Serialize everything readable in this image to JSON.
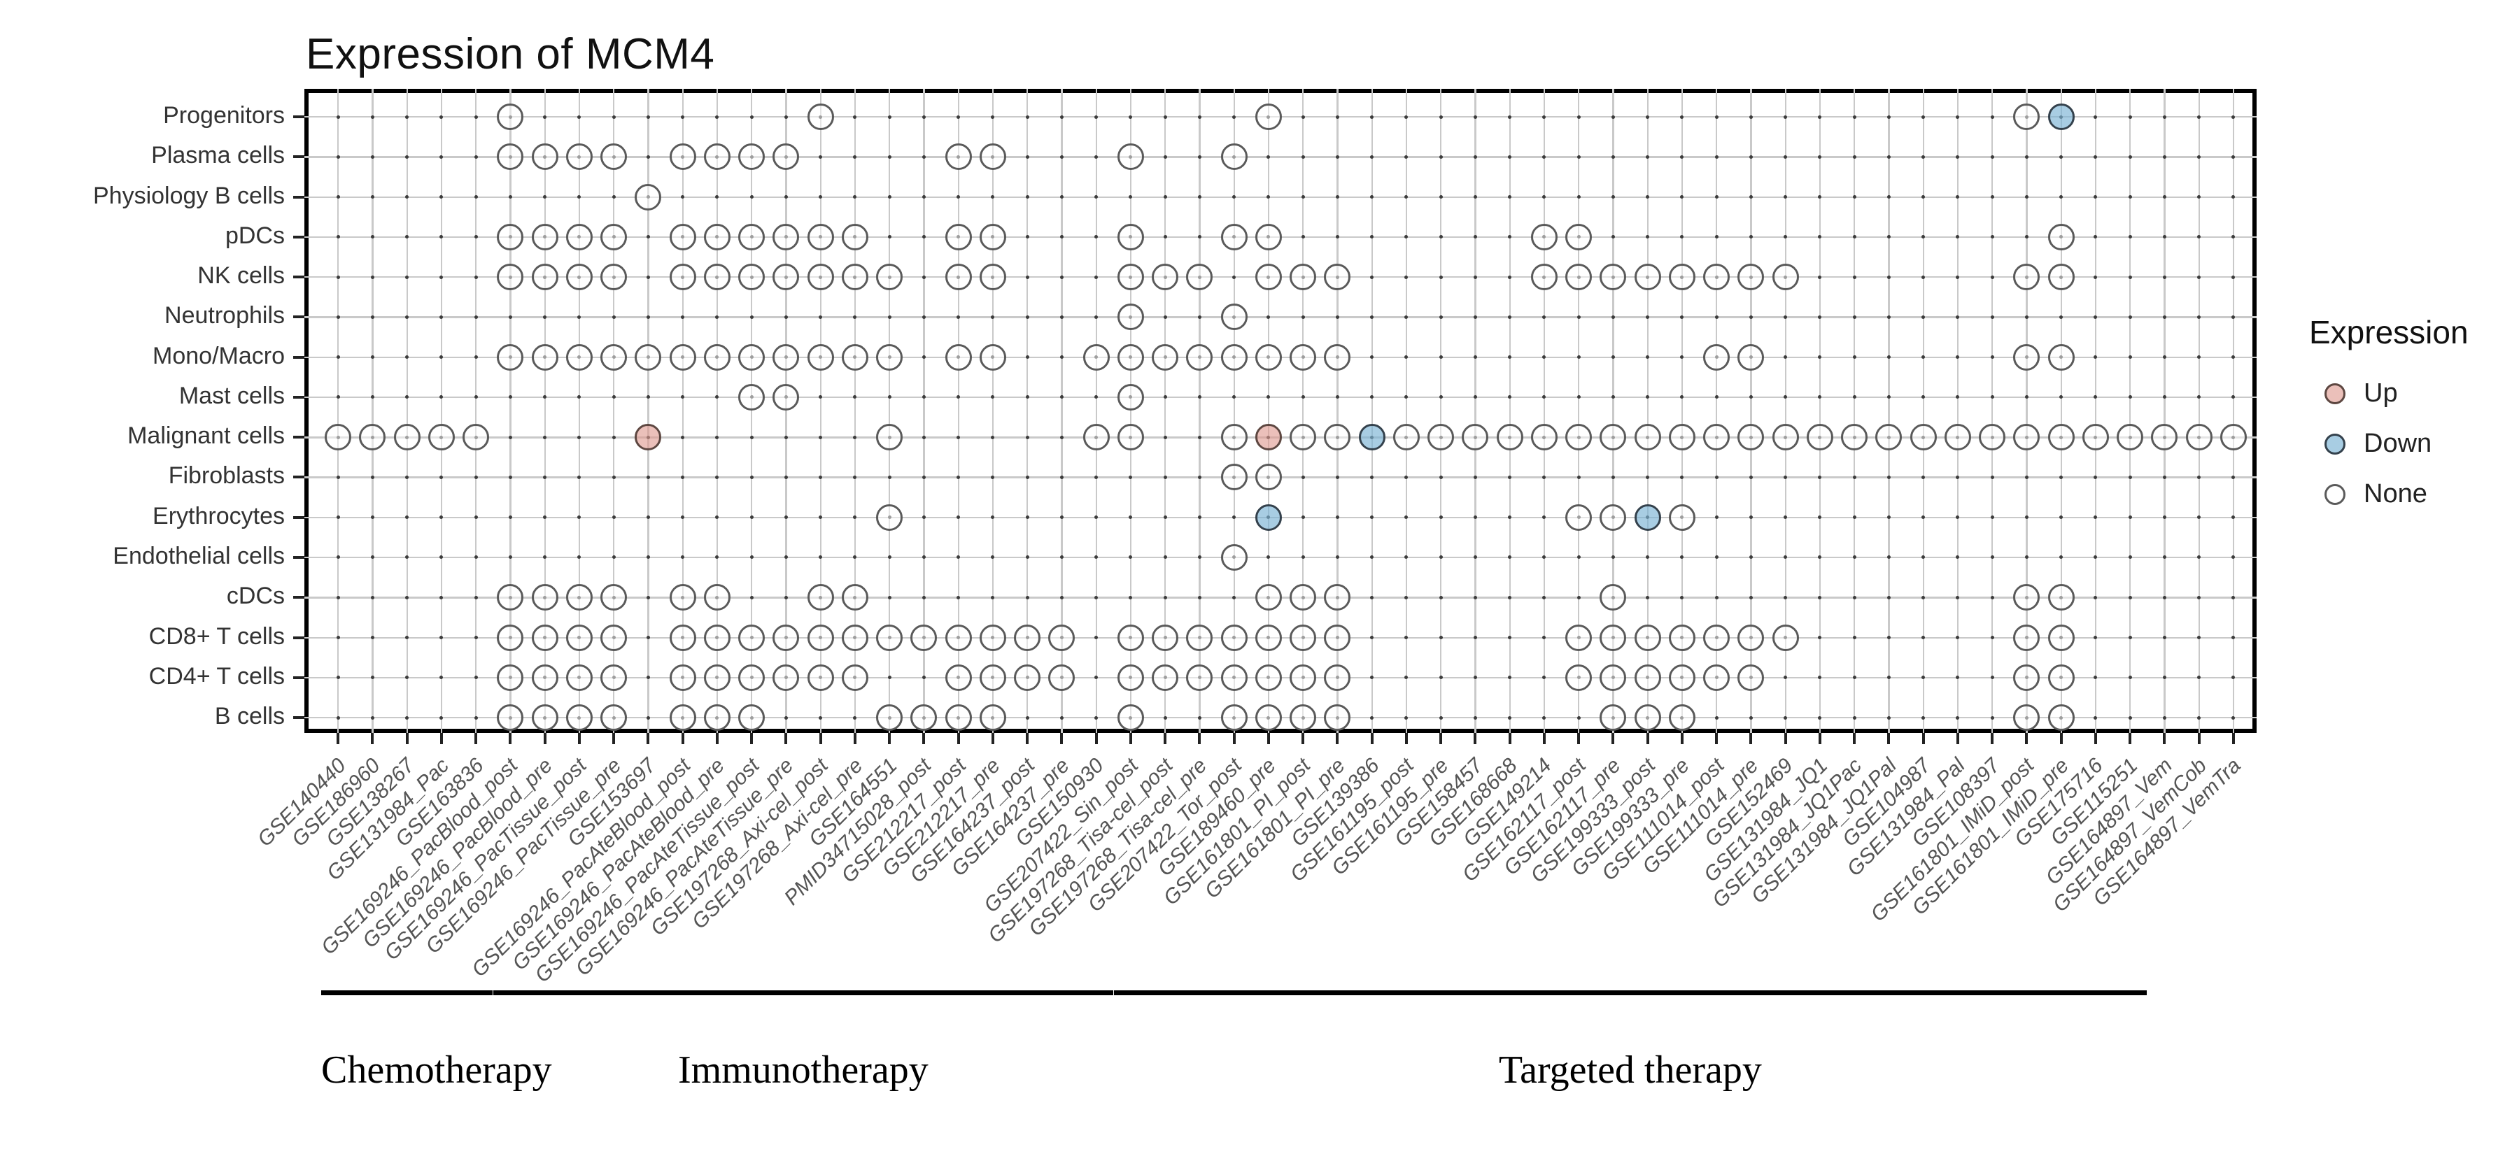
{
  "title": "Expression of MCM4",
  "legend": {
    "title": "Expression",
    "items": [
      {
        "label": "Up",
        "key": "up"
      },
      {
        "label": "Down",
        "key": "down"
      },
      {
        "label": "None",
        "key": "none"
      }
    ]
  },
  "colors": {
    "up_fill": "rgba(222,154,144,0.62)",
    "up_stroke": "#5d4741",
    "down_fill": "rgba(122,178,212,0.65)",
    "down_stroke": "#34414c",
    "none_fill": "rgba(255,255,255,0.5)",
    "none_stroke": "#5a5a5a",
    "grid": "#c9c9c9",
    "intersection_dot": "#3c3c3c",
    "panel_border": "#000000"
  },
  "chart_data": {
    "type": "scatter",
    "title": "Expression of MCM4",
    "xlabel": "",
    "ylabel": "",
    "grid": true,
    "legend_position": "right",
    "x_categories": [
      "GSE140440",
      "GSE186960",
      "GSE138267",
      "GSE131984_Pac",
      "GSE163836",
      "GSE169246_PacBlood_post",
      "GSE169246_PacBlood_pre",
      "GSE169246_PacTissue_post",
      "GSE169246_PacTissue_pre",
      "GSE153697",
      "GSE169246_PacAteBlood_post",
      "GSE169246_PacAteBlood_pre",
      "GSE169246_PacAteTissue_post",
      "GSE169246_PacAteTissue_pre",
      "GSE197268_Axi-cel_post",
      "GSE197268_Axi-cel_pre",
      "GSE164551",
      "PMID34715028_post",
      "GSE212217_post",
      "GSE212217_pre",
      "GSE164237_post",
      "GSE164237_pre",
      "GSE150930",
      "GSE207422_Sin_post",
      "GSE197268_Tisa-cel_post",
      "GSE197268_Tisa-cel_pre",
      "GSE207422_Tor_post",
      "GSE189460_pre",
      "GSE161801_PI_post",
      "GSE161801_PI_pre",
      "GSE139386",
      "GSE161195_post",
      "GSE161195_pre",
      "GSE158457",
      "GSE168668",
      "GSE149214",
      "GSE162117_post",
      "GSE162117_pre",
      "GSE199333_post",
      "GSE199333_pre",
      "GSE111014_post",
      "GSE111014_pre",
      "GSE152469",
      "GSE131984_JQ1",
      "GSE131984_JQ1Pac",
      "GSE131984_JQ1Pal",
      "GSE104987",
      "GSE131984_Pal",
      "GSE108397",
      "GSE161801_IMiD_post",
      "GSE161801_IMiD_pre",
      "GSE175716",
      "GSE115251",
      "GSE164897_Vem",
      "GSE164897_VemCob",
      "GSE164897_VemTra"
    ],
    "y_categories": [
      "Progenitors",
      "Plasma cells",
      "Physiology B cells",
      "pDCs",
      "NK cells",
      "Neutrophils",
      "Mono/Macro",
      "Mast cells",
      "Malignant cells",
      "Fibroblasts",
      "Erythrocytes",
      "Endothelial cells",
      "cDCs",
      "CD8+ T cells",
      "CD4+ T cells",
      "B cells"
    ],
    "groups": [
      {
        "label": "Chemotherapy",
        "from": 1,
        "to": 5
      },
      {
        "label": "Immunotherapy",
        "from": 6,
        "to": 23
      },
      {
        "label": "Targeted therapy",
        "from": 24,
        "to": 53
      }
    ],
    "points": [
      {
        "row": "Progenitors",
        "none": [
          6,
          15,
          28,
          50
        ],
        "up": [],
        "down": [
          51
        ]
      },
      {
        "row": "Plasma cells",
        "none": [
          6,
          7,
          8,
          9,
          11,
          12,
          13,
          14,
          19,
          20,
          24,
          27
        ],
        "up": [],
        "down": []
      },
      {
        "row": "Physiology B cells",
        "none": [
          10
        ],
        "up": [],
        "down": []
      },
      {
        "row": "pDCs",
        "none": [
          6,
          7,
          8,
          9,
          11,
          12,
          13,
          14,
          15,
          16,
          19,
          20,
          24,
          27,
          28,
          36,
          37,
          51
        ],
        "up": [],
        "down": []
      },
      {
        "row": "NK cells",
        "none": [
          6,
          7,
          8,
          9,
          11,
          12,
          13,
          14,
          15,
          16,
          17,
          19,
          20,
          24,
          25,
          26,
          28,
          29,
          30,
          36,
          37,
          38,
          39,
          40,
          41,
          42,
          43,
          50,
          51
        ],
        "up": [],
        "down": []
      },
      {
        "row": "Neutrophils",
        "none": [
          24,
          27
        ],
        "up": [],
        "down": []
      },
      {
        "row": "Mono/Macro",
        "none": [
          6,
          7,
          8,
          9,
          10,
          11,
          12,
          13,
          14,
          15,
          16,
          17,
          19,
          20,
          23,
          24,
          25,
          26,
          27,
          28,
          29,
          30,
          41,
          42,
          50,
          51
        ],
        "up": [],
        "down": []
      },
      {
        "row": "Mast cells",
        "none": [
          13,
          14,
          24
        ],
        "up": [],
        "down": []
      },
      {
        "row": "Malignant cells",
        "none": [
          1,
          2,
          3,
          4,
          5,
          17,
          23,
          24,
          27,
          29,
          30,
          32,
          33,
          34,
          35,
          36,
          37,
          38,
          39,
          40,
          41,
          42,
          43,
          44,
          45,
          46,
          47,
          48,
          49,
          50,
          51,
          52,
          53,
          54,
          55,
          56
        ],
        "up": [
          10,
          28
        ],
        "down": [
          31
        ]
      },
      {
        "row": "Fibroblasts",
        "none": [
          27,
          28
        ],
        "up": [],
        "down": []
      },
      {
        "row": "Erythrocytes",
        "none": [
          17,
          37,
          38,
          40
        ],
        "up": [],
        "down": [
          28,
          39
        ]
      },
      {
        "row": "Endothelial cells",
        "none": [
          27
        ],
        "up": [],
        "down": []
      },
      {
        "row": "cDCs",
        "none": [
          6,
          7,
          8,
          9,
          11,
          12,
          15,
          16,
          28,
          29,
          30,
          38,
          50,
          51
        ],
        "up": [],
        "down": []
      },
      {
        "row": "CD8+ T cells",
        "none": [
          6,
          7,
          8,
          9,
          11,
          12,
          13,
          14,
          15,
          16,
          17,
          18,
          19,
          20,
          21,
          22,
          24,
          25,
          26,
          27,
          28,
          29,
          30,
          37,
          38,
          39,
          40,
          41,
          42,
          43,
          50,
          51
        ],
        "up": [],
        "down": []
      },
      {
        "row": "CD4+ T cells",
        "none": [
          6,
          7,
          8,
          9,
          11,
          12,
          13,
          14,
          15,
          16,
          19,
          20,
          21,
          22,
          24,
          25,
          26,
          27,
          28,
          29,
          30,
          37,
          38,
          39,
          40,
          41,
          42,
          50,
          51
        ],
        "up": [],
        "down": []
      },
      {
        "row": "B cells",
        "none": [
          6,
          7,
          8,
          9,
          11,
          12,
          13,
          17,
          18,
          19,
          20,
          24,
          27,
          28,
          29,
          30,
          38,
          39,
          40,
          50,
          51
        ],
        "up": [],
        "down": []
      }
    ]
  }
}
